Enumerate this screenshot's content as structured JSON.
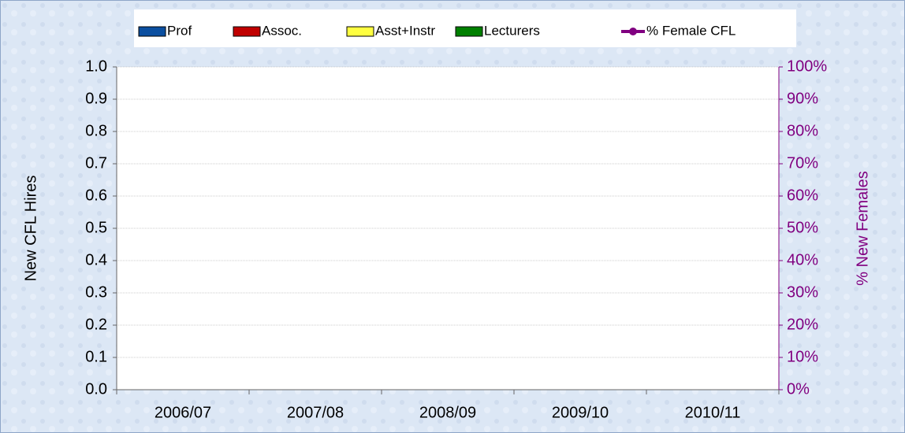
{
  "chart_data": {
    "type": "bar",
    "stacked": true,
    "y_label": "New CFL Hires",
    "y2_label": "% New Females",
    "categories": [
      "2006/07",
      "2007/08",
      "2008/09",
      "2009/10",
      "2010/11"
    ],
    "series": [
      {
        "name": "Prof",
        "color": "#0b4fa0",
        "values": [
          0,
          0,
          0,
          0,
          0
        ]
      },
      {
        "name": "Assoc.",
        "color": "#c00000",
        "values": [
          0,
          0,
          0,
          0,
          0
        ]
      },
      {
        "name": "Asst+Instr",
        "color": "#ffff40",
        "values": [
          0,
          0,
          0,
          0,
          0
        ]
      },
      {
        "name": "Lecturers",
        "color": "#008000",
        "values": [
          0,
          0,
          0,
          0,
          0
        ]
      },
      {
        "name": "% Female CFL",
        "type": "line",
        "axis": "y2",
        "color": "#800080",
        "values": [
          null,
          null,
          null,
          null,
          null
        ]
      }
    ],
    "ylim": [
      0,
      1
    ],
    "yticks": [
      {
        "value": 0,
        "label": "0.0"
      },
      0.1,
      0.2,
      0.3,
      0.4,
      0.5,
      0.6,
      0.7,
      0.8,
      0.9,
      {
        "value": 1,
        "label": "1.0"
      }
    ],
    "y2lim": [
      0,
      100
    ],
    "y2ticks": [
      {
        "value": 0,
        "label": "0%"
      },
      {
        "value": 10,
        "label": "10%"
      },
      {
        "value": 20,
        "label": "20%"
      },
      {
        "value": 30,
        "label": "30%"
      },
      {
        "value": 40,
        "label": "40%"
      },
      {
        "value": 50,
        "label": "50%"
      },
      {
        "value": 60,
        "label": "60%"
      },
      {
        "value": 70,
        "label": "70%"
      },
      {
        "value": 80,
        "label": "80%"
      },
      {
        "value": 90,
        "label": "90%"
      },
      {
        "value": 100,
        "label": "100%"
      }
    ],
    "grid": true,
    "legend": "top"
  }
}
